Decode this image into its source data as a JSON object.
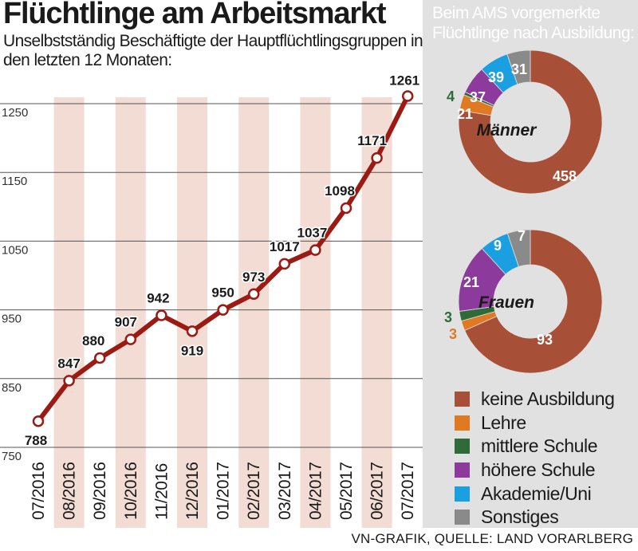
{
  "title": "Flüchtlinge am Arbeitsmarkt",
  "subtitle": "Unselbstständig Beschäftigte der Hauptflüchtlingsgruppen in den letzten 12 Monaten:",
  "chart_data": [
    {
      "type": "line",
      "title": "Flüchtlinge am Arbeitsmarkt",
      "subtitle": "Unselbstständig Beschäftigte der Hauptflüchtlingsgruppen in den letzten 12 Monaten:",
      "categories": [
        "07/2016",
        "08/2016",
        "09/2016",
        "10/2016",
        "11/2016",
        "12/2016",
        "01/2017",
        "02/2017",
        "03/2017",
        "04/2017",
        "05/2017",
        "06/2017",
        "07/2017"
      ],
      "values": [
        788,
        847,
        880,
        907,
        942,
        919,
        950,
        973,
        1017,
        1037,
        1098,
        1171,
        1261
      ],
      "yticks": [
        750,
        850,
        950,
        1050,
        1150,
        1250
      ],
      "ylim": [
        750,
        1280
      ],
      "xlabel": "",
      "ylabel": "",
      "grid": true,
      "color": "#9c1a14"
    },
    {
      "type": "pie",
      "variant": "donut",
      "title": "Männer",
      "categories": [
        "keine Ausbildung",
        "Lehre",
        "mittlere Schule",
        "höhere Schule",
        "Akademie/Uni",
        "Sonstiges"
      ],
      "values": [
        458,
        21,
        4,
        37,
        39,
        31
      ]
    },
    {
      "type": "pie",
      "variant": "donut",
      "title": "Frauen",
      "categories": [
        "keine Ausbildung",
        "Lehre",
        "mittlere Schule",
        "höhere Schule",
        "Akademie/Uni",
        "Sonstiges"
      ],
      "values": [
        93,
        3,
        3,
        21,
        9,
        7
      ]
    }
  ],
  "donut_panel": {
    "title": "Beim AMS vorgemerkte Flüchtlinge nach Ausbildung:"
  },
  "legend": [
    {
      "label": "keine Ausbildung",
      "color": "#a84f37"
    },
    {
      "label": "Lehre",
      "color": "#e07a22"
    },
    {
      "label": "mittlere Schule",
      "color": "#2e6b39"
    },
    {
      "label": "höhere Schule",
      "color": "#8c3a9c"
    },
    {
      "label": "Akademie/Uni",
      "color": "#1aa0e0"
    },
    {
      "label": "Sonstiges",
      "color": "#8a8a8a"
    }
  ],
  "footer": "VN-GRAFIK, QUELLE: LAND VORARLBERG"
}
